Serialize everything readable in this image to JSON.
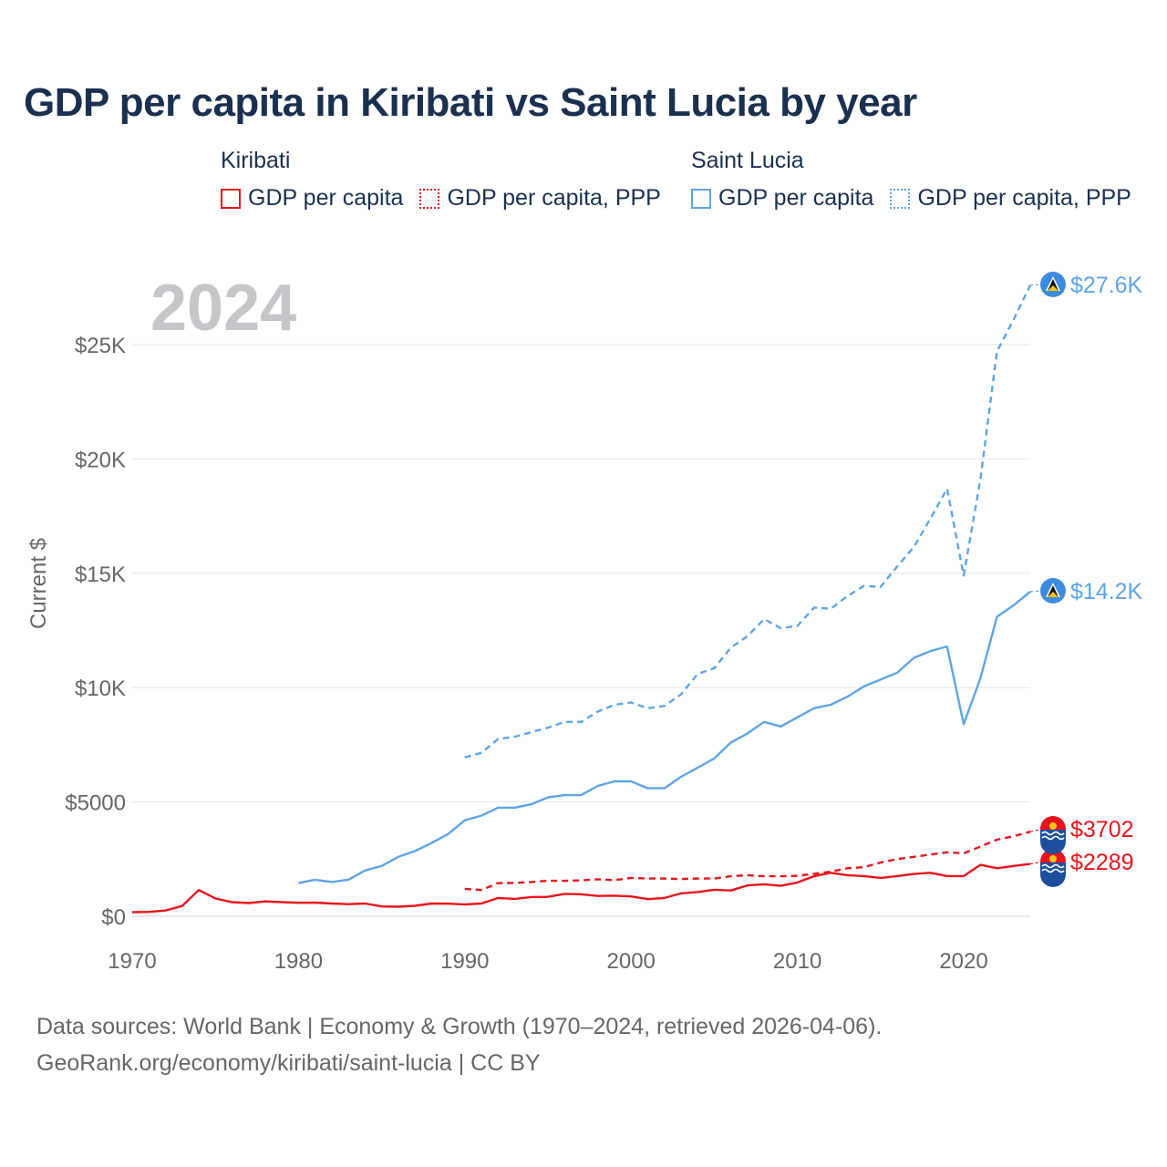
{
  "title": "GDP per capita in Kiribati vs Saint Lucia by year",
  "legend": {
    "groups": [
      {
        "name": "Kiribati",
        "items": [
          {
            "label": "GDP per capita",
            "style": "solid",
            "color": "#e8141c"
          },
          {
            "label": "GDP per capita, PPP",
            "style": "dotted",
            "color": "#e8141c"
          }
        ]
      },
      {
        "name": "Saint Lucia",
        "items": [
          {
            "label": "GDP per capita",
            "style": "solid",
            "color": "#5ea4e6"
          },
          {
            "label": "GDP per capita, PPP",
            "style": "dotted",
            "color": "#5ea4e6"
          }
        ]
      }
    ]
  },
  "chart_data": {
    "type": "line",
    "title": "GDP per capita in Kiribati vs Saint Lucia by year",
    "ylabel": "Current $",
    "xlabel": "",
    "xlim": [
      1970,
      2024
    ],
    "ylim": [
      0,
      27600
    ],
    "x_ticks": [
      1970,
      1980,
      1990,
      2000,
      2010,
      2020
    ],
    "y_ticks": [
      {
        "value": 0,
        "label": "$0"
      },
      {
        "value": 5000,
        "label": "$5000"
      },
      {
        "value": 10000,
        "label": "$10K"
      },
      {
        "value": 15000,
        "label": "$15K"
      },
      {
        "value": 20000,
        "label": "$20K"
      },
      {
        "value": 25000,
        "label": "$25K"
      }
    ],
    "year_watermark": "2024",
    "series": [
      {
        "name": "Kiribati GDP per capita",
        "country": "Kiribati",
        "style": "solid",
        "color": "#e8141c",
        "start_year": 1970,
        "end_label": "$2289",
        "values": [
          180,
          190,
          250,
          450,
          1150,
          780,
          620,
          580,
          650,
          620,
          590,
          600,
          560,
          530,
          560,
          430,
          420,
          460,
          560,
          550,
          520,
          560,
          800,
          760,
          840,
          850,
          980,
          960,
          890,
          900,
          870,
          750,
          800,
          1000,
          1060,
          1160,
          1130,
          1350,
          1400,
          1330,
          1480,
          1750,
          1900,
          1800,
          1760,
          1680,
          1760,
          1850,
          1900,
          1760,
          1760,
          2250,
          2100,
          2200,
          2289
        ]
      },
      {
        "name": "Kiribati GDP per capita, PPP",
        "country": "Kiribati",
        "style": "dashed",
        "color": "#e8141c",
        "start_year": 1990,
        "end_label": "$3702",
        "values": [
          1200,
          1150,
          1450,
          1460,
          1500,
          1550,
          1550,
          1570,
          1620,
          1580,
          1680,
          1650,
          1650,
          1630,
          1650,
          1650,
          1750,
          1800,
          1750,
          1750,
          1770,
          1860,
          1950,
          2100,
          2150,
          2350,
          2500,
          2600,
          2700,
          2800,
          2750,
          3050,
          3350,
          3500,
          3702
        ]
      },
      {
        "name": "Saint Lucia GDP per capita",
        "country": "Saint Lucia",
        "style": "solid",
        "color": "#5ea4e6",
        "start_year": 1980,
        "end_label": "$14.2K",
        "values": [
          1450,
          1600,
          1500,
          1600,
          2000,
          2200,
          2600,
          2850,
          3200,
          3600,
          4200,
          4400,
          4750,
          4750,
          4900,
          5200,
          5300,
          5300,
          5700,
          5900,
          5900,
          5600,
          5600,
          6100,
          6500,
          6900,
          7600,
          8000,
          8500,
          8300,
          8700,
          9100,
          9250,
          9600,
          10050,
          10350,
          10650,
          11300,
          11600,
          11800,
          8400,
          10400,
          13100,
          13600,
          14200
        ]
      },
      {
        "name": "Saint Lucia GDP per capita, PPP",
        "country": "Saint Lucia",
        "style": "dashed",
        "color": "#5ea4e6",
        "start_year": 1990,
        "end_label": "$27.6K",
        "values": [
          6950,
          7150,
          7750,
          7850,
          8050,
          8250,
          8500,
          8500,
          8950,
          9250,
          9350,
          9100,
          9200,
          9700,
          10600,
          10850,
          11750,
          12250,
          13000,
          12600,
          12700,
          13500,
          13450,
          14000,
          14450,
          14400,
          15300,
          16150,
          17400,
          18700,
          14900,
          19100,
          24700,
          26100,
          27600
        ]
      }
    ]
  },
  "footer": {
    "line1": "Data sources: World Bank | Economy & Growth (1970–2024, retrieved 2026-04-06).",
    "line2": "GeoRank.org/economy/kiribati/saint-lucia | CC BY"
  }
}
